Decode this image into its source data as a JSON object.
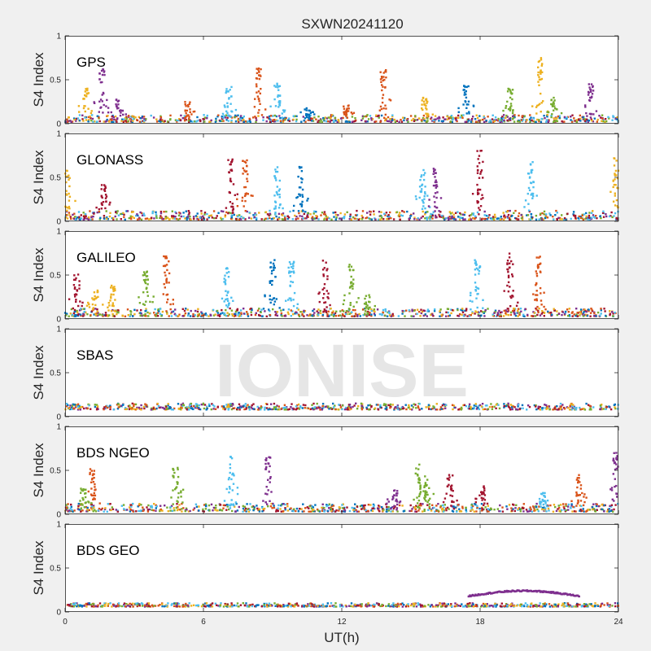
{
  "figure": {
    "title": "SXWN20241120",
    "xlabel": "UT(h)",
    "ylabel": "S4 Index",
    "watermark": "IONISE"
  },
  "colors": {
    "background": "#f0f0f0",
    "axes_face": "#ffffff",
    "axis_line": "#262626",
    "watermark": "#e3e3e3",
    "series": [
      "#0072BD",
      "#D95319",
      "#EDB120",
      "#7E2F8E",
      "#77AC30",
      "#4DBEEE",
      "#A2142F"
    ]
  },
  "chart_data": [
    {
      "type": "scatter",
      "panel_label": "GPS",
      "xlim": [
        0,
        24
      ],
      "ylim": [
        0,
        1
      ],
      "x_ticks": [
        "0",
        "6",
        "12",
        "18",
        "24"
      ],
      "y_ticks": [
        "0",
        "0.5",
        "1"
      ],
      "baseline": [
        0.02,
        0.1
      ],
      "bursts": [
        {
          "t": 0.9,
          "peak": 0.4,
          "c": 2
        },
        {
          "t": 1.6,
          "peak": 0.62,
          "c": 3
        },
        {
          "t": 2.3,
          "peak": 0.28,
          "c": 3
        },
        {
          "t": 5.3,
          "peak": 0.25,
          "c": 1
        },
        {
          "t": 7.1,
          "peak": 0.42,
          "c": 5
        },
        {
          "t": 8.4,
          "peak": 0.63,
          "c": 1
        },
        {
          "t": 9.2,
          "peak": 0.47,
          "c": 5
        },
        {
          "t": 10.5,
          "peak": 0.2,
          "c": 0
        },
        {
          "t": 12.2,
          "peak": 0.22,
          "c": 1
        },
        {
          "t": 13.8,
          "peak": 0.62,
          "c": 1
        },
        {
          "t": 15.6,
          "peak": 0.32,
          "c": 2
        },
        {
          "t": 17.4,
          "peak": 0.45,
          "c": 0
        },
        {
          "t": 19.3,
          "peak": 0.4,
          "c": 4
        },
        {
          "t": 20.6,
          "peak": 0.76,
          "c": 2
        },
        {
          "t": 21.2,
          "peak": 0.32,
          "c": 4
        },
        {
          "t": 22.8,
          "peak": 0.45,
          "c": 3
        }
      ]
    },
    {
      "type": "scatter",
      "panel_label": "GLONASS",
      "xlim": [
        0,
        24
      ],
      "ylim": [
        0,
        1
      ],
      "x_ticks": [
        "0",
        "6",
        "12",
        "18",
        "24"
      ],
      "y_ticks": [
        "0",
        "0.5",
        "1"
      ],
      "baseline": [
        0.02,
        0.12
      ],
      "bursts": [
        {
          "t": 0.1,
          "peak": 0.6,
          "c": 2
        },
        {
          "t": 1.7,
          "peak": 0.42,
          "c": 6
        },
        {
          "t": 7.2,
          "peak": 0.72,
          "c": 6
        },
        {
          "t": 7.8,
          "peak": 0.72,
          "c": 1
        },
        {
          "t": 9.2,
          "peak": 0.62,
          "c": 5
        },
        {
          "t": 10.2,
          "peak": 0.62,
          "c": 0
        },
        {
          "t": 15.5,
          "peak": 0.62,
          "c": 5
        },
        {
          "t": 16.1,
          "peak": 0.6,
          "c": 3
        },
        {
          "t": 18.0,
          "peak": 0.82,
          "c": 6
        },
        {
          "t": 20.2,
          "peak": 0.68,
          "c": 5
        },
        {
          "t": 23.9,
          "peak": 0.75,
          "c": 2
        }
      ]
    },
    {
      "type": "scatter",
      "panel_label": "GALILEO",
      "xlim": [
        0,
        24
      ],
      "ylim": [
        0,
        1
      ],
      "x_ticks": [
        "0",
        "6",
        "12",
        "18",
        "24"
      ],
      "y_ticks": [
        "0",
        "0.5",
        "1"
      ],
      "baseline": [
        0.03,
        0.12
      ],
      "bursts": [
        {
          "t": 0.5,
          "peak": 0.52,
          "c": 6
        },
        {
          "t": 1.3,
          "peak": 0.33,
          "c": 2
        },
        {
          "t": 2.1,
          "peak": 0.38,
          "c": 2
        },
        {
          "t": 3.5,
          "peak": 0.55,
          "c": 4
        },
        {
          "t": 4.4,
          "peak": 0.72,
          "c": 1
        },
        {
          "t": 7.0,
          "peak": 0.58,
          "c": 5
        },
        {
          "t": 9.0,
          "peak": 0.68,
          "c": 0
        },
        {
          "t": 9.8,
          "peak": 0.65,
          "c": 5
        },
        {
          "t": 11.3,
          "peak": 0.68,
          "c": 6
        },
        {
          "t": 12.4,
          "peak": 0.62,
          "c": 4
        },
        {
          "t": 13.1,
          "peak": 0.28,
          "c": 4
        },
        {
          "t": 17.9,
          "peak": 0.68,
          "c": 5
        },
        {
          "t": 19.3,
          "peak": 0.75,
          "c": 6
        },
        {
          "t": 20.5,
          "peak": 0.72,
          "c": 1
        }
      ]
    },
    {
      "type": "scatter",
      "panel_label": "SBAS",
      "xlim": [
        0,
        24
      ],
      "ylim": [
        0,
        1
      ],
      "x_ticks": [
        "0",
        "6",
        "12",
        "18",
        "24"
      ],
      "y_ticks": [
        "0",
        "0.5",
        "1"
      ],
      "baseline": [
        0.08,
        0.15
      ],
      "bursts": []
    },
    {
      "type": "scatter",
      "panel_label": "BDS NGEO",
      "xlim": [
        0,
        24
      ],
      "ylim": [
        0,
        1
      ],
      "x_ticks": [
        "0",
        "6",
        "12",
        "18",
        "24"
      ],
      "y_ticks": [
        "0",
        "0.5",
        "1"
      ],
      "baseline": [
        0.03,
        0.12
      ],
      "bursts": [
        {
          "t": 0.8,
          "peak": 0.32,
          "c": 4
        },
        {
          "t": 1.2,
          "peak": 0.52,
          "c": 1
        },
        {
          "t": 4.8,
          "peak": 0.58,
          "c": 4
        },
        {
          "t": 7.2,
          "peak": 0.68,
          "c": 5
        },
        {
          "t": 8.8,
          "peak": 0.65,
          "c": 3
        },
        {
          "t": 14.3,
          "peak": 0.28,
          "c": 3
        },
        {
          "t": 15.3,
          "peak": 0.62,
          "c": 4
        },
        {
          "t": 15.7,
          "peak": 0.45,
          "c": 4
        },
        {
          "t": 16.7,
          "peak": 0.45,
          "c": 6
        },
        {
          "t": 18.1,
          "peak": 0.32,
          "c": 6
        },
        {
          "t": 20.7,
          "peak": 0.25,
          "c": 5
        },
        {
          "t": 22.3,
          "peak": 0.45,
          "c": 1
        },
        {
          "t": 23.9,
          "peak": 0.7,
          "c": 3
        }
      ]
    },
    {
      "type": "scatter",
      "panel_label": "BDS GEO",
      "xlim": [
        0,
        24
      ],
      "ylim": [
        0,
        1
      ],
      "x_ticks": [
        "0",
        "6",
        "12",
        "18",
        "24"
      ],
      "y_ticks": [
        "0",
        "0.5",
        "1"
      ],
      "baseline": [
        0.06,
        0.1
      ],
      "bursts": [],
      "arc": {
        "t_start": 17.5,
        "t_end": 22.3,
        "base": 0.18,
        "peak": 0.24,
        "c": 3
      }
    }
  ]
}
